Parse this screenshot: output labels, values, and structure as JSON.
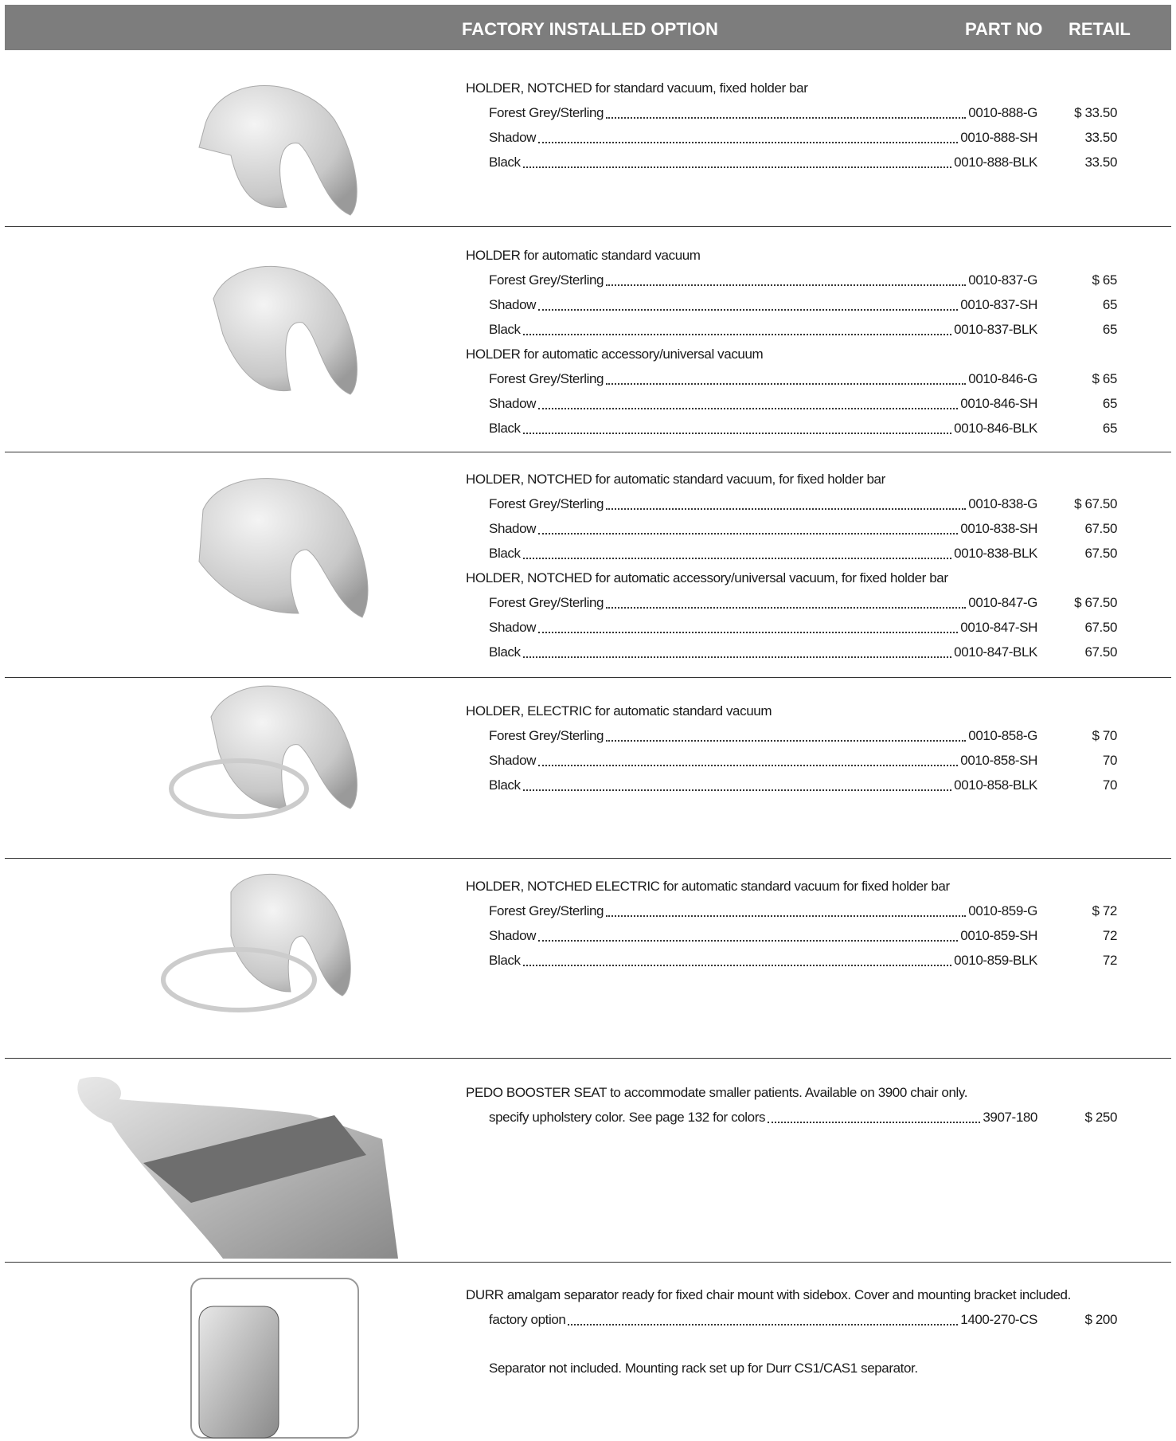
{
  "header": {
    "title": "FACTORY INSTALLED OPTION",
    "part_no": "PART NO",
    "retail": "RETAIL"
  },
  "sections": [
    {
      "groups": [
        {
          "heading": "HOLDER, NOTCHED for standard vacuum, fixed holder bar",
          "items": [
            {
              "name": "Forest Grey/Sterling",
              "part": "0010-888-G",
              "price": "$ 33.50"
            },
            {
              "name": "Shadow",
              "part": "0010-888-SH",
              "price": "33.50"
            },
            {
              "name": "Black",
              "part": "0010-888-BLK",
              "price": "33.50"
            }
          ]
        }
      ]
    },
    {
      "groups": [
        {
          "heading": "HOLDER for automatic standard vacuum",
          "items": [
            {
              "name": "Forest Grey/Sterling",
              "part": "0010-837-G",
              "price": "$ 65"
            },
            {
              "name": "Shadow",
              "part": "0010-837-SH",
              "price": "65"
            },
            {
              "name": "Black",
              "part": "0010-837-BLK",
              "price": "65"
            }
          ]
        },
        {
          "heading": "HOLDER for automatic accessory/universal vacuum",
          "items": [
            {
              "name": "Forest Grey/Sterling",
              "part": "0010-846-G",
              "price": "$ 65"
            },
            {
              "name": "Shadow",
              "part": "0010-846-SH",
              "price": "65"
            },
            {
              "name": "Black",
              "part": "0010-846-BLK",
              "price": "65"
            }
          ]
        }
      ]
    },
    {
      "groups": [
        {
          "heading": "HOLDER, NOTCHED for automatic standard vacuum, for fixed holder bar",
          "items": [
            {
              "name": "Forest Grey/Sterling",
              "part": "0010-838-G",
              "price": "$ 67.50"
            },
            {
              "name": "Shadow",
              "part": "0010-838-SH",
              "price": "67.50"
            },
            {
              "name": "Black",
              "part": "0010-838-BLK",
              "price": "67.50"
            }
          ]
        },
        {
          "heading": "HOLDER, NOTCHED for automatic accessory/universal vacuum, for fixed holder bar",
          "items": [
            {
              "name": "Forest Grey/Sterling",
              "part": "0010-847-G",
              "price": "$ 67.50"
            },
            {
              "name": "Shadow",
              "part": "0010-847-SH",
              "price": "67.50"
            },
            {
              "name": "Black",
              "part": "0010-847-BLK",
              "price": "67.50"
            }
          ]
        }
      ]
    },
    {
      "groups": [
        {
          "heading": "HOLDER, ELECTRIC for automatic standard vacuum",
          "items": [
            {
              "name": "Forest Grey/Sterling",
              "part": "0010-858-G",
              "price": "$ 70"
            },
            {
              "name": "Shadow",
              "part": "0010-858-SH",
              "price": "70"
            },
            {
              "name": "Black",
              "part": "0010-858-BLK",
              "price": "70"
            }
          ]
        }
      ]
    },
    {
      "groups": [
        {
          "heading": "HOLDER, NOTCHED ELECTRIC for automatic standard vacuum for fixed holder bar",
          "items": [
            {
              "name": "Forest Grey/Sterling",
              "part": "0010-859-G",
              "price": "$ 72"
            },
            {
              "name": "Shadow",
              "part": "0010-859-SH",
              "price": "72"
            },
            {
              "name": "Black",
              "part": "0010-859-BLK",
              "price": "72"
            }
          ]
        }
      ]
    },
    {
      "groups": [
        {
          "heading": "PEDO BOOSTER SEAT to accommodate smaller patients. Available on 3900 chair only.",
          "items": [
            {
              "name": "specify upholstery color. See page 132 for colors",
              "part": "3907-180",
              "price": "$ 250"
            }
          ]
        }
      ]
    },
    {
      "groups": [
        {
          "heading": "DURR amalgam separator ready for fixed chair mount with sidebox. Cover and mounting bracket included.",
          "items": [
            {
              "name": "factory option",
              "part": "1400-270-CS",
              "price": "$ 200"
            }
          ]
        }
      ],
      "note": "Separator not included. Mounting rack set up for Durr CS1/CAS1 separator."
    }
  ]
}
